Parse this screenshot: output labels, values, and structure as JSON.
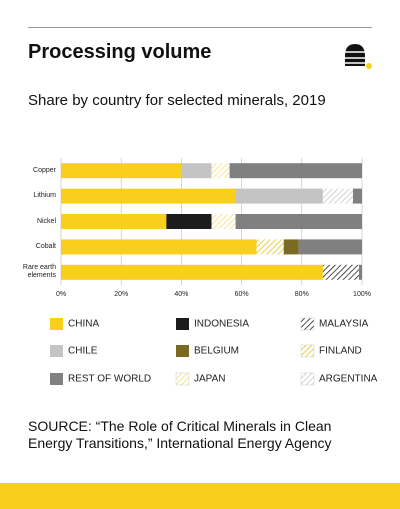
{
  "header": {
    "title": "Processing volume",
    "subtitle": "Share by country for selected minerals, 2019"
  },
  "chart_data": {
    "type": "stacked_bar_horizontal",
    "categories": [
      "Copper",
      "Lithium",
      "Nickel",
      "Cobalt",
      "Rare earth elements"
    ],
    "series": [
      {
        "name": "CHINA",
        "color": "#f7cf1c",
        "hatch": false,
        "values": [
          40,
          58,
          35,
          65,
          87
        ]
      },
      {
        "name": "INDONESIA",
        "color": "#1c1c1c",
        "hatch": false,
        "values": [
          0,
          0,
          15,
          0,
          0
        ]
      },
      {
        "name": "CHILE",
        "color": "#c4c4c4",
        "hatch": false,
        "values": [
          10,
          29,
          0,
          0,
          0
        ]
      },
      {
        "name": "JAPAN",
        "color": "#f3df7a",
        "hatch": true,
        "values": [
          6,
          0,
          8,
          0,
          0
        ]
      },
      {
        "name": "ARGENTINA",
        "color": "#c8c8c8",
        "hatch": true,
        "values": [
          0,
          10,
          0,
          0,
          0
        ]
      },
      {
        "name": "FINLAND",
        "color": "#e6c11e",
        "hatch": true,
        "values": [
          0,
          0,
          0,
          9,
          0
        ]
      },
      {
        "name": "BELGIUM",
        "color": "#7a6a24",
        "hatch": false,
        "values": [
          0,
          0,
          0,
          5,
          0
        ]
      },
      {
        "name": "MALAYSIA",
        "color": "#222222",
        "hatch": true,
        "values": [
          0,
          0,
          0,
          0,
          12
        ]
      },
      {
        "name": "REST OF WORLD",
        "color": "#808080",
        "hatch": false,
        "values": [
          44,
          3,
          42,
          21,
          1
        ]
      }
    ],
    "xlim": [
      0,
      100
    ],
    "xticks": [
      {
        "value": 0,
        "label": "0%"
      },
      {
        "value": 20,
        "label": "20%"
      },
      {
        "value": 40,
        "label": "40%"
      },
      {
        "value": 60,
        "label": "60%"
      },
      {
        "value": 80,
        "label": "80%"
      },
      {
        "value": 100,
        "label": "100%"
      }
    ],
    "grid": true
  },
  "source": "SOURCE: “The Role of Critical Minerals in Clean Energy Transitions,” International Energy Agency"
}
